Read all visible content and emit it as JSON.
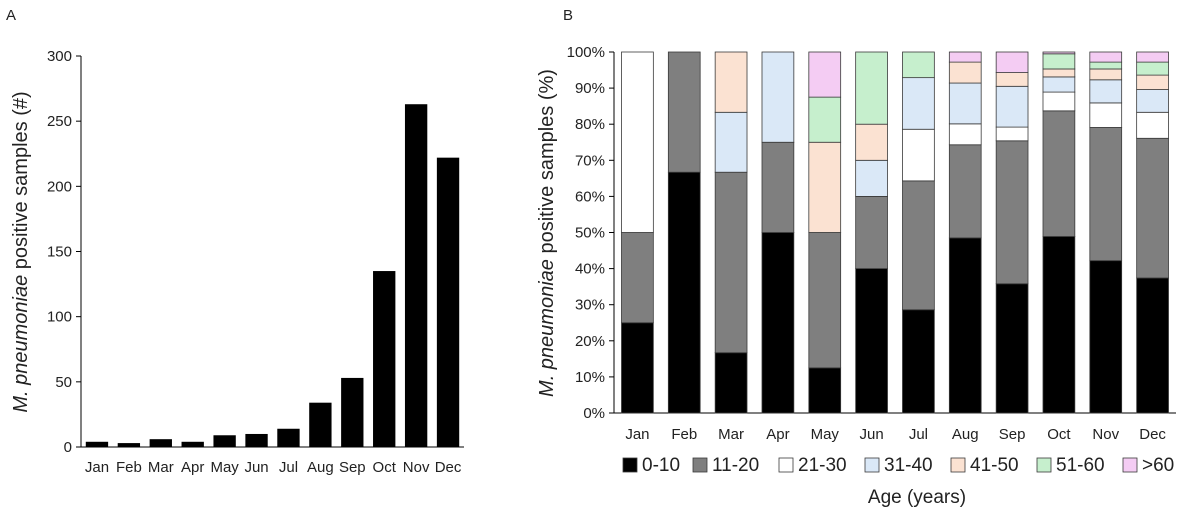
{
  "chart_data": [
    {
      "panel": "A",
      "type": "bar",
      "categories": [
        "Jan",
        "Feb",
        "Mar",
        "Apr",
        "May",
        "Jun",
        "Jul",
        "Aug",
        "Sep",
        "Oct",
        "Nov",
        "Dec"
      ],
      "values": [
        4,
        3,
        6,
        4,
        9,
        10,
        14,
        34,
        53,
        135,
        263,
        222
      ],
      "ylabel_italic": "M. pneumoniae",
      "ylabel_rest": " positive samples (#)",
      "xlabel": "",
      "ylim": [
        0,
        300
      ],
      "yticks": [
        0,
        50,
        100,
        150,
        200,
        250,
        300
      ],
      "bar_color": "#000000",
      "grid": false
    },
    {
      "panel": "B",
      "type": "bar",
      "stacked": true,
      "normalized": true,
      "categories": [
        "Jan",
        "Feb",
        "Mar",
        "Apr",
        "May",
        "Jun",
        "Jul",
        "Aug",
        "Sep",
        "Oct",
        "Nov",
        "Dec"
      ],
      "series": [
        {
          "name": "0-10",
          "color": "#000000",
          "values": [
            25,
            66.7,
            16.7,
            50,
            12.5,
            40,
            28.6,
            48.5,
            35.8,
            48.9,
            42.2,
            37.4
          ]
        },
        {
          "name": "11-20",
          "color": "#7f7f7f",
          "values": [
            25,
            33.3,
            50,
            25,
            37.5,
            20,
            35.7,
            25.8,
            39.6,
            34.8,
            36.9,
            38.7
          ]
        },
        {
          "name": "21-30",
          "color": "#ffffff",
          "values": [
            50,
            0,
            0,
            0,
            0,
            0,
            14.3,
            5.8,
            3.8,
            5.2,
            6.8,
            7.2
          ]
        },
        {
          "name": "31-40",
          "color": "#dae8f7",
          "values": [
            0,
            0,
            16.6,
            25,
            0,
            10,
            14.3,
            11.3,
            11.3,
            4.2,
            6.4,
            6.3
          ]
        },
        {
          "name": "41-50",
          "color": "#fbe2d2",
          "values": [
            0,
            0,
            16.7,
            0,
            25,
            10,
            0,
            5.8,
            3.8,
            2.2,
            3.0,
            4.0
          ]
        },
        {
          "name": "51-60",
          "color": "#c6efcd",
          "values": [
            0,
            0,
            0,
            0,
            12.5,
            20,
            7.1,
            0,
            0,
            4.2,
            1.9,
            3.6
          ]
        },
        {
          "name": ">60",
          "color": "#f4ccf3",
          "values": [
            0,
            0,
            0,
            0,
            12.5,
            0,
            0,
            2.8,
            5.7,
            0.5,
            2.8,
            2.8
          ]
        }
      ],
      "ylabel_italic": "M. pneumoniae",
      "ylabel_rest": " positive samples (%)",
      "xlabel": "Age (years)",
      "ylim": [
        0,
        100
      ],
      "yticks": [
        "0%",
        "10%",
        "20%",
        "30%",
        "40%",
        "50%",
        "60%",
        "70%",
        "80%",
        "90%",
        "100%"
      ],
      "legend_placement": "bottom",
      "grid": false
    }
  ]
}
